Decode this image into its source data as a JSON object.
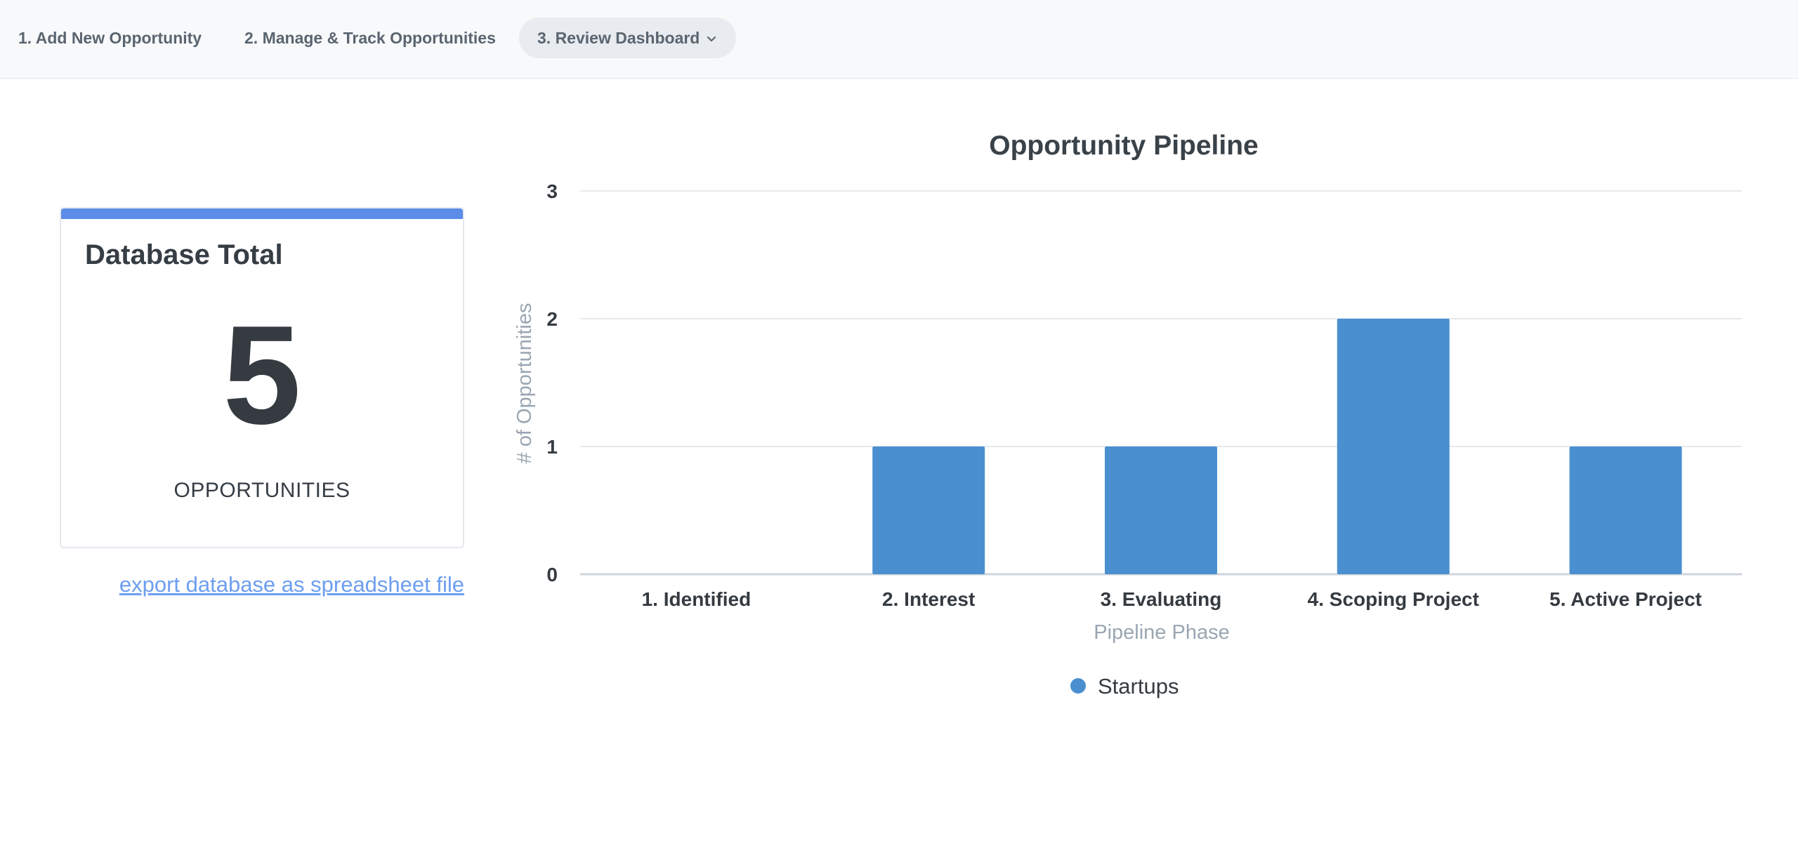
{
  "nav": {
    "tabs": [
      {
        "label": "1. Add New Opportunity"
      },
      {
        "label": "2. Manage & Track Opportunities"
      },
      {
        "label": "3. Review Dashboard"
      }
    ]
  },
  "card": {
    "title": "Database Total",
    "value": "5",
    "unit": "OPPORTUNITIES"
  },
  "export_link": "export database as spreadsheet file",
  "chart_data": {
    "type": "bar",
    "title": "Opportunity Pipeline",
    "xlabel": "Pipeline Phase",
    "ylabel": "# of Opportunities",
    "categories": [
      "1. Identified",
      "2. Interest",
      "3. Evaluating",
      "4. Scoping Project",
      "5. Active Project"
    ],
    "series": [
      {
        "name": "Startups",
        "values": [
          0,
          1,
          1,
          2,
          1
        ],
        "color": "#4a90d0"
      }
    ],
    "ylim": [
      0,
      3
    ],
    "yticks": [
      0,
      1,
      2,
      3
    ],
    "grid": true,
    "legend": "bottom-center"
  },
  "colors": {
    "accent": "#5b8de8",
    "bar": "#4a90d0",
    "link": "#6d9ef0"
  }
}
